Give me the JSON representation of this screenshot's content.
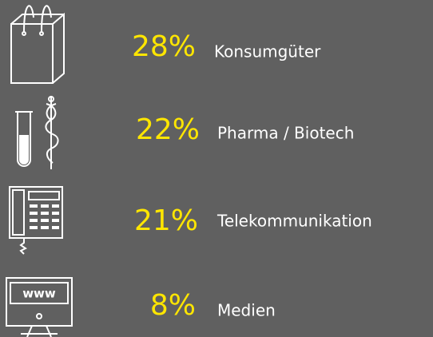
{
  "items": [
    {
      "percent": "28%",
      "label": "Konsumgüter"
    },
    {
      "percent": "22%",
      "label": "Pharma / Biotech"
    },
    {
      "percent": "21%",
      "label": "Telekommunikation"
    },
    {
      "percent": "8%",
      "label": "Medien"
    }
  ],
  "monitor_text": "www"
}
